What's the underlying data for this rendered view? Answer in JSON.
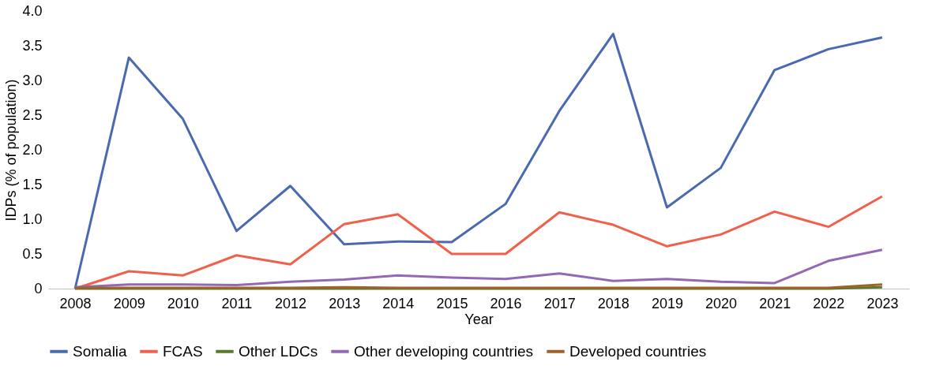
{
  "chart_data": {
    "type": "line",
    "xlabel": "Year",
    "ylabel": "IDPs (% of population)",
    "categories": [
      "2008",
      "2009",
      "2010",
      "2011",
      "2012",
      "2013",
      "2014",
      "2015",
      "2016",
      "2017",
      "2018",
      "2019",
      "2020",
      "2021",
      "2022",
      "2023"
    ],
    "ylim": [
      0,
      4
    ],
    "yticks": [
      {
        "value": 0,
        "label": "0"
      },
      {
        "value": 0.5,
        "label": "0.5"
      },
      {
        "value": 1,
        "label": "1.0"
      },
      {
        "value": 1.5,
        "label": "1.5"
      },
      {
        "value": 2,
        "label": "2.0"
      },
      {
        "value": 2.5,
        "label": "2.5"
      },
      {
        "value": 3,
        "label": "3.0"
      },
      {
        "value": 3.5,
        "label": "3.5"
      },
      {
        "value": 4,
        "label": "4.0"
      }
    ],
    "grid": false,
    "legend": "bottom",
    "marker": "none",
    "line_style": "solid",
    "series": [
      {
        "name": "Somalia",
        "color": "#4a69b0",
        "values": [
          0,
          3.33,
          2.45,
          0.83,
          1.48,
          0.64,
          0.68,
          0.67,
          1.22,
          2.56,
          3.67,
          1.17,
          1.74,
          3.15,
          3.45,
          3.62
        ]
      },
      {
        "name": "FCAS",
        "color": "#f0604a",
        "values": [
          0,
          0.25,
          0.19,
          0.48,
          0.35,
          0.93,
          1.07,
          0.5,
          0.5,
          1.1,
          0.92,
          0.61,
          0.78,
          1.11,
          0.89,
          1.33
        ]
      },
      {
        "name": "Other LDCs",
        "color": "#5a7a2a",
        "values": [
          0,
          0,
          0,
          0,
          0,
          0,
          0,
          0,
          0,
          0,
          0,
          0,
          0,
          0,
          0,
          0.02
        ]
      },
      {
        "name": "Other developing countries",
        "color": "#9368b5",
        "values": [
          0.02,
          0.06,
          0.06,
          0.05,
          0.1,
          0.13,
          0.19,
          0.16,
          0.14,
          0.22,
          0.11,
          0.14,
          0.1,
          0.08,
          0.4,
          0.56
        ]
      },
      {
        "name": "Developed countries",
        "color": "#a0622a",
        "values": [
          0.01,
          0.01,
          0.01,
          0.01,
          0.01,
          0.02,
          0.01,
          0.01,
          0.01,
          0.01,
          0.01,
          0.01,
          0.01,
          0.01,
          0.01,
          0.06
        ]
      }
    ]
  }
}
